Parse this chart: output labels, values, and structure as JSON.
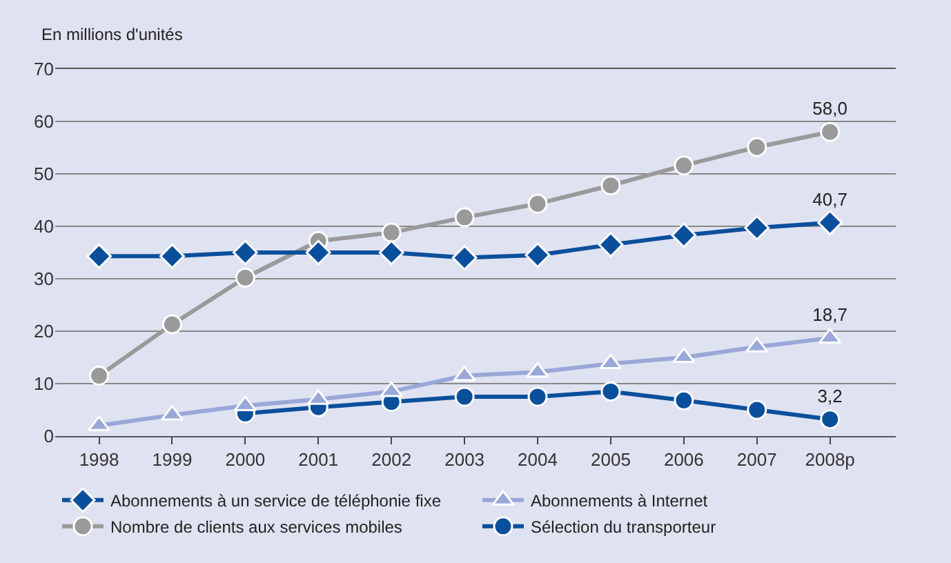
{
  "chart_data": {
    "type": "line",
    "ylabel": "En millions d'unités",
    "categories": [
      "1998",
      "1999",
      "2000",
      "2001",
      "2002",
      "2003",
      "2004",
      "2005",
      "2006",
      "2007",
      "2008p"
    ],
    "series": [
      {
        "name": "Abonnements à un service de téléphonie fixe",
        "color": "#0a4f9c",
        "marker": "diamond",
        "values": [
          34.3,
          34.3,
          35,
          35,
          35,
          34,
          34.5,
          36.5,
          38.3,
          39.7,
          40.7
        ],
        "value_labels": [
          null,
          null,
          null,
          null,
          null,
          null,
          null,
          null,
          null,
          null,
          "40,7"
        ]
      },
      {
        "name": "Abonnements à Internet",
        "color": "#9aa8d8",
        "marker": "triangle",
        "values": [
          2,
          4,
          5.8,
          7,
          8.5,
          11.5,
          12.2,
          13.8,
          15,
          17,
          18.7
        ],
        "value_labels": [
          null,
          null,
          null,
          null,
          null,
          null,
          null,
          null,
          null,
          null,
          "18,7"
        ]
      },
      {
        "name": "Nombre de clients aux services mobiles",
        "color": "#9a9a9a",
        "marker": "circle",
        "values": [
          11.5,
          21.3,
          30.2,
          37.2,
          38.8,
          41.7,
          44.3,
          47.8,
          51.6,
          55.1,
          58.0
        ],
        "value_labels": [
          null,
          null,
          null,
          null,
          null,
          null,
          null,
          null,
          null,
          null,
          "58,0"
        ]
      },
      {
        "name": "Sélection du transporteur",
        "color": "#0a4f9c",
        "marker": "circle",
        "values": [
          null,
          null,
          4.3,
          5.5,
          6.5,
          7.5,
          7.5,
          8.5,
          6.8,
          5,
          3.2
        ],
        "value_labels": [
          null,
          null,
          null,
          null,
          null,
          null,
          null,
          null,
          null,
          null,
          "3,2"
        ]
      }
    ],
    "ylim": [
      0,
      70
    ],
    "yticks": [
      0,
      10,
      20,
      30,
      40,
      50,
      60,
      70
    ],
    "grid": "y",
    "legend": "bottom",
    "line_style": "solid"
  }
}
